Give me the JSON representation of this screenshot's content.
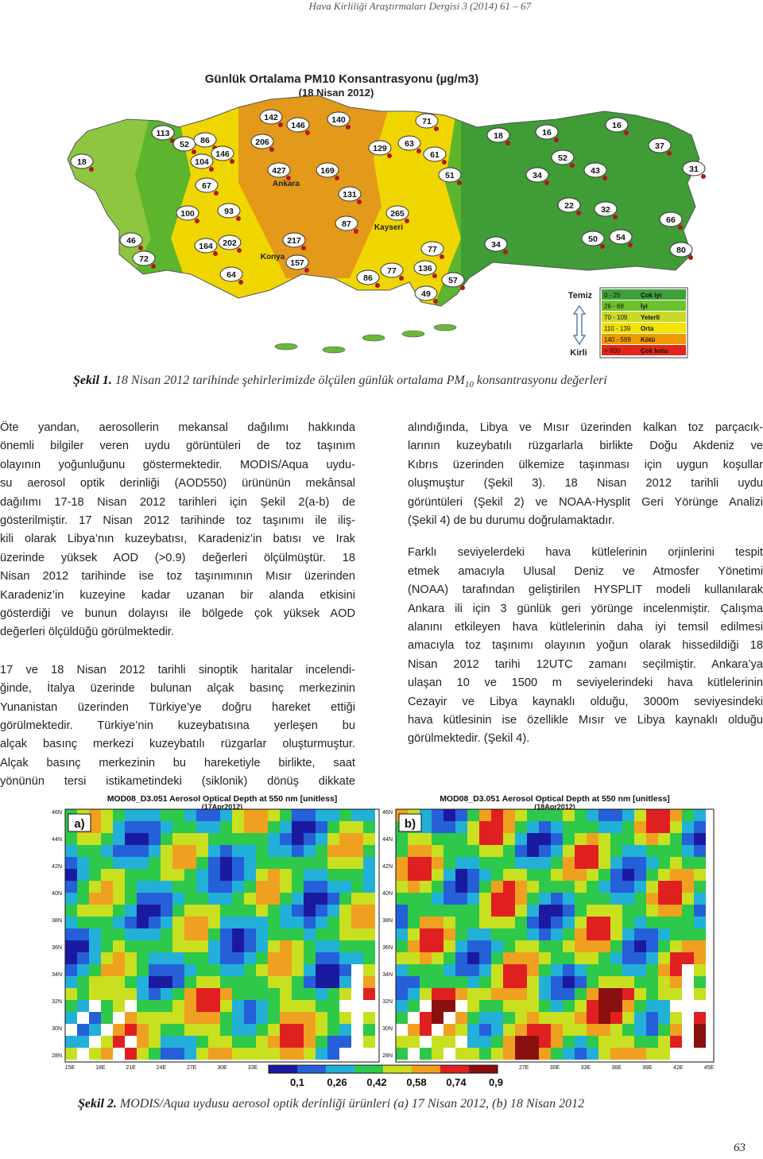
{
  "header": "Hava Kirliliği Araştırmaları Dergisi 3 (2014) 61 – 67",
  "figure1": {
    "title": "Günlük Ortalama PM10 Konsantrasyonu (µg/m3)",
    "subtitle": "(18 Nisan 2012)",
    "stations": [
      113,
      52,
      86,
      18,
      104,
      146,
      142,
      146,
      140,
      206,
      71,
      129,
      63,
      61,
      18,
      16,
      16,
      37,
      52,
      427,
      169,
      67,
      51,
      34,
      43,
      31,
      131,
      93,
      100,
      22,
      32,
      265,
      87,
      66,
      46,
      164,
      202,
      217,
      34,
      50,
      54,
      72,
      157,
      77,
      136,
      80,
      64,
      86,
      77,
      57,
      49
    ],
    "cities": [
      "Ankara",
      "Kayseri",
      "Konya"
    ],
    "legend": {
      "clean": "Temiz",
      "dirty": "Kirli",
      "rows": [
        {
          "range": "0 - 25",
          "label": "Çok iyi",
          "color": "#3f9f3a"
        },
        {
          "range": "26 - 69",
          "label": "İyi",
          "color": "#6cc12c"
        },
        {
          "range": "70 - 109",
          "label": "Yeterli",
          "color": "#c9d92a"
        },
        {
          "range": "110 - 139",
          "label": "Orta",
          "color": "#f3e300"
        },
        {
          "range": "140 - 599",
          "label": "Kötü",
          "color": "#f09a00"
        },
        {
          "range": "> 600",
          "label": "Çok kotu",
          "color": "#e2261c"
        }
      ]
    },
    "caption": {
      "label": "Şekil 1.",
      "text": "18 Nisan 2012 tarihinde şehirlerimizde ölçülen günlük ortalama PM",
      "sub": "10",
      "rest": "konsantrasyonu değerleri"
    }
  },
  "left_column": [
    {
      "lines": [
        "Öte yandan, aerosollerin mekansal dağılımı hakkında",
        "önemli bilgiler veren uydu görüntüleri de toz taşınım",
        "olayının yoğunluğunu göstermektedir. MODIS/Aqua uydu-",
        "su aerosol optik derinliği (AOD550) ürününün mekânsal",
        "dağılımı 17-18 Nisan 2012 tarihleri için Şekil 2(a-b) de",
        "gösterilmiştir. 17 Nisan 2012 tarihinde toz taşınımı ile iliş-",
        "kili olarak Libya’nın kuzeybatısı, Karadeniz’in batısı ve Irak",
        "üzerinde yüksek AOD (>0.9) değerleri ölçülmüştür. 18",
        "Nisan 2012 tarihinde ise toz taşınımının Mısır üzerinden",
        "Karadeniz’in kuzeyine kadar uzanan bir alanda etkisini",
        "gösterdiği ve bunun dolayısı ile bölgede çok yüksek AOD",
        "değerleri ölçüldüğü görülmektedir."
      ]
    },
    {
      "lines": [
        "17 ve 18 Nisan 2012 tarihli sinoptik haritalar incelendi-",
        "ğinde, İtalya üzerinde bulunan alçak basınç merkezinin",
        "Yunanistan üzerinden Türkiye’ye doğru hareket ettiği",
        "görülmektedir. Türkiye’nin kuzeybatısına yerleşen bu",
        "alçak basınç merkezi kuzeybatılı rüzgarlar oluşturmuştur.",
        "Alçak basınç merkezinin bu hareketiyle birlikte, saat",
        "yönünün tersi istikametindeki (siklonik) dönüş dikkate"
      ]
    }
  ],
  "right_column": [
    {
      "lines": [
        "alındığında, Libya ve Mısır üzerinden kalkan toz parçacık-",
        "larının kuzeybatılı rüzgarlarla birlikte Doğu Akdeniz ve",
        "Kıbrıs üzerinden ülkemize taşınması için uygun koşullar",
        "oluşmuştur (Şekil 3). 18 Nisan 2012 tarihli uydu",
        "görüntüleri (Şekil 2) ve NOAA-Hysplit Geri Yörünge Analizi",
        "(Şekil 4) de bu durumu doğrulamaktadır."
      ]
    },
    {
      "lines": [
        "Farklı seviyelerdeki hava kütlelerinin orjinlerini tespit",
        "etmek amacıyla Ulusal Deniz ve Atmosfer Yönetimi",
        "(NOAA) tarafından geliştirilen HYSPLIT modeli kullanılarak",
        "Ankara ili için 3 günlük geri yörünge incelenmiştir. Çalışma",
        "alanını etkileyen hava kütlelerinin daha iyi temsil edilmesi",
        "amacıyla toz taşınımı olayının yoğun olarak hissedildiği 18",
        "Nisan 2012 tarihi 12UTC zamanı seçilmiştir. Ankara’ya",
        "ulaşan 10 ve 1500 m seviyelerindeki hava kütlelerinin",
        "Cezayir ve Libya kaynaklı olduğu, 3000m seviyesindeki",
        "hava kütlesinin ise özellikle Mısır ve Libya kaynaklı olduğu",
        "görülmektedir. (Şekil 4)."
      ]
    }
  ],
  "figure2": {
    "panels": [
      {
        "title": "MOD08_D3.051 Aerosol Optical Depth at 550 nm [unitless]",
        "date": "(17Apr2012)",
        "label": "a)"
      },
      {
        "title": "MOD08_D3.051 Aerosol Optical Depth at 550 nm [unitless]",
        "date": "(18Apr2012)",
        "label": "b)"
      }
    ],
    "lat_labels": [
      "46N",
      "44N",
      "42N",
      "40N",
      "38N",
      "36N",
      "34N",
      "32N",
      "30N",
      "28N"
    ],
    "lon_labels": [
      "15E",
      "18E",
      "21E",
      "24E",
      "27E",
      "30E",
      "33E",
      "36E",
      "39E",
      "42E",
      "45E"
    ],
    "colorbar_labels": [
      "0,1",
      "0,26",
      "0,42",
      "0,58",
      "0,74",
      "0,9"
    ],
    "caption": {
      "label": "Şekil 2.",
      "text": "MODIS/Aqua uydusu aerosol optik derinliği ürünleri (a) 17 Nisan 2012, (b) 18 Nisan 2012"
    }
  },
  "page_number": "63"
}
